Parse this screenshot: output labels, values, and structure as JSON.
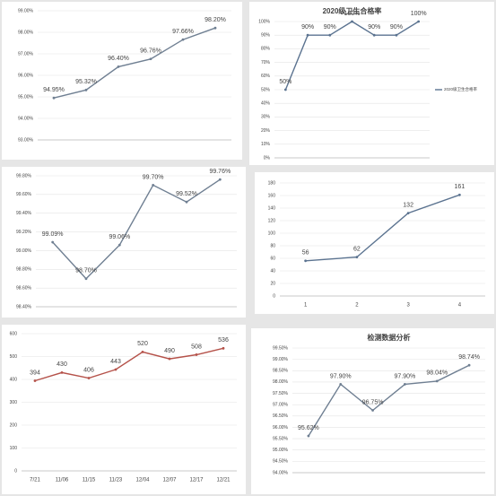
{
  "chart_data": [
    {
      "type": "line",
      "categories": [
        null,
        null,
        null,
        null,
        null,
        null
      ],
      "series": [
        {
          "color": "#6f7f92",
          "values": [
            94.95,
            95.32,
            96.4,
            96.76,
            97.66,
            98.2
          ],
          "value_labels": [
            "94.95%",
            "95.32%",
            "96.40%",
            "96.76%",
            "97.66%",
            "98.20%"
          ]
        }
      ],
      "ylim": [
        93,
        99
      ],
      "yticks": [
        {
          "value": 93,
          "label": "93.00%"
        },
        {
          "value": 94,
          "label": "94.00%"
        },
        {
          "value": 95,
          "label": "95.00%"
        },
        {
          "value": 96,
          "label": "96.00%"
        },
        {
          "value": 97,
          "label": "97.00%"
        },
        {
          "value": 98,
          "label": "98.00%"
        },
        {
          "value": 99,
          "label": "99.00%"
        }
      ],
      "grid": true
    },
    {
      "type": "line",
      "title": "2020级卫生合格率",
      "categories": [
        null,
        null,
        null,
        null,
        null,
        null,
        null
      ],
      "series": [
        {
          "name": "2020级卫生合格率",
          "color": "#5b7390",
          "values": [
            50,
            90,
            90,
            100,
            90,
            90,
            100
          ],
          "value_labels": [
            "50%",
            "90%",
            "90%",
            "100%",
            "90%",
            "90%",
            "100%"
          ]
        }
      ],
      "ylim": [
        0,
        100
      ],
      "yticks": [
        {
          "value": 0,
          "label": "0%"
        },
        {
          "value": 10,
          "label": "10%"
        },
        {
          "value": 20,
          "label": "20%"
        },
        {
          "value": 30,
          "label": "30%"
        },
        {
          "value": 40,
          "label": "40%"
        },
        {
          "value": 50,
          "label": "50%"
        },
        {
          "value": 60,
          "label": "60%"
        },
        {
          "value": 70,
          "label": "70%"
        },
        {
          "value": 80,
          "label": "80%"
        },
        {
          "value": 90,
          "label": "90%"
        },
        {
          "value": 100,
          "label": "100%"
        }
      ],
      "grid": true,
      "legend": "right"
    },
    {
      "type": "line",
      "categories": [
        null,
        null,
        null,
        null,
        null,
        null
      ],
      "series": [
        {
          "color": "#6f7f92",
          "values": [
            99.09,
            98.7,
            99.06,
            99.7,
            99.52,
            99.76
          ],
          "value_labels": [
            "99.09%",
            "98.70%",
            "99.06%",
            "99.70%",
            "99.52%",
            "99.76%"
          ]
        }
      ],
      "ylim": [
        98.4,
        99.8
      ],
      "yticks": [
        {
          "value": 98.4,
          "label": "98.40%"
        },
        {
          "value": 98.6,
          "label": "98.60%"
        },
        {
          "value": 98.8,
          "label": "98.80%"
        },
        {
          "value": 99.0,
          "label": "99.00%"
        },
        {
          "value": 99.2,
          "label": "99.20%"
        },
        {
          "value": 99.4,
          "label": "99.40%"
        },
        {
          "value": 99.6,
          "label": "99.60%"
        },
        {
          "value": 99.8,
          "label": "99.80%"
        }
      ],
      "grid": true
    },
    {
      "type": "line",
      "categories": [
        "1",
        "2",
        "3",
        "4"
      ],
      "series": [
        {
          "color": "#5b7390",
          "values": [
            56,
            62,
            132,
            161
          ]
        }
      ],
      "ylim": [
        0,
        180
      ],
      "yticks": [
        0,
        20,
        40,
        60,
        80,
        100,
        120,
        140,
        160,
        180
      ],
      "grid": true
    },
    {
      "type": "line",
      "categories": [
        "7/21",
        "11/06",
        "11/15",
        "11/23",
        "12/04",
        "12/07",
        "12/17",
        "12/21"
      ],
      "series": [
        {
          "color": "#b5524a",
          "values": [
            394,
            430,
            406,
            443,
            520,
            490,
            508,
            536
          ]
        }
      ],
      "ylim": [
        0,
        600
      ],
      "yticks": [
        0,
        100,
        200,
        300,
        400,
        500,
        600
      ],
      "grid": true
    },
    {
      "type": "line",
      "title": "检测数据分析",
      "categories": [
        null,
        null,
        null,
        null,
        null,
        null
      ],
      "series": [
        {
          "color": "#6f7f92",
          "values": [
            95.62,
            97.9,
            96.75,
            97.9,
            98.04,
            98.74
          ],
          "value_labels": [
            "95.62%",
            "97.90%",
            "96.75%",
            "97.90%",
            "98.04%",
            "98.74%"
          ]
        }
      ],
      "ylim": [
        94,
        99.5
      ],
      "yticks": [
        {
          "value": 94,
          "label": "94.00%"
        },
        {
          "value": 94.5,
          "label": "94.50%"
        },
        {
          "value": 95,
          "label": "95.00%"
        },
        {
          "value": 95.5,
          "label": "95.50%"
        },
        {
          "value": 96,
          "label": "96.00%"
        },
        {
          "value": 96.5,
          "label": "96.50%"
        },
        {
          "value": 97,
          "label": "97.00%"
        },
        {
          "value": 97.5,
          "label": "97.50%"
        },
        {
          "value": 98,
          "label": "98.00%"
        },
        {
          "value": 98.5,
          "label": "98.50%"
        },
        {
          "value": 99,
          "label": "99.00%"
        },
        {
          "value": 99.5,
          "label": "99.50%"
        }
      ],
      "grid": true
    }
  ]
}
